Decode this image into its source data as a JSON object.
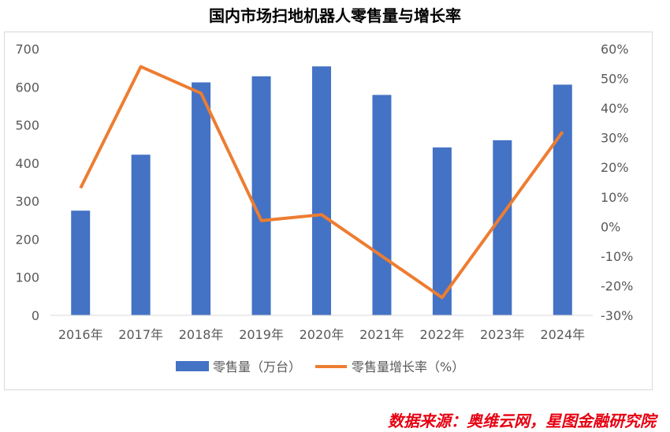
{
  "title": "国内市场扫地机器人零售量与增长率",
  "source": "数据来源：奥维云网，星图金融研究院",
  "colors": {
    "bar": "#4472C4",
    "line": "#ED7D31"
  },
  "chart_data": {
    "type": "bar",
    "title": "国内市场扫地机器人零售量与增长率",
    "categories": [
      "2016年",
      "2017年",
      "2018年",
      "2019年",
      "2020年",
      "2021年",
      "2022年",
      "2023年",
      "2024年"
    ],
    "series": [
      {
        "name": "零售量（万台）",
        "type": "bar",
        "axis": "left",
        "values": [
          275,
          422,
          612,
          628,
          654,
          579,
          441,
          460,
          606
        ]
      },
      {
        "name": "零售量增长率（%）",
        "type": "line",
        "axis": "right",
        "values": [
          13,
          54,
          45,
          2,
          4,
          -10,
          -24,
          4,
          32
        ]
      }
    ],
    "ylim_left": [
      0,
      700
    ],
    "yticks_left": [
      "0",
      "100",
      "200",
      "300",
      "400",
      "500",
      "600",
      "700"
    ],
    "ylim_right": [
      -30,
      60
    ],
    "yticks_right": [
      "-30%",
      "-20%",
      "-10%",
      "0%",
      "10%",
      "20%",
      "30%",
      "40%",
      "50%",
      "60%"
    ],
    "grid": false,
    "legend_position": "bottom"
  }
}
